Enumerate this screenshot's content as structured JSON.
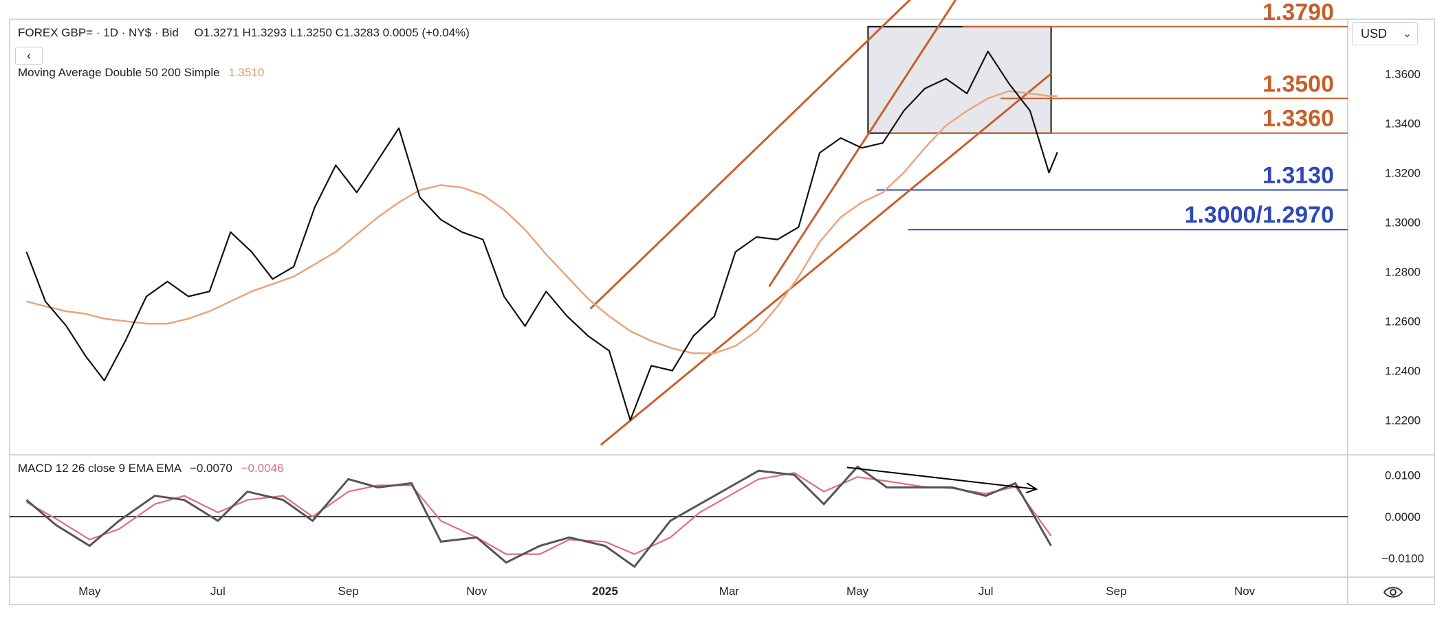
{
  "header": {
    "instrument": "FOREX GBP= · 1D · NY$ · Bid",
    "ohlc": "O1.3271  H1.3293  L1.3250  C1.3283  0.0005 (+0.04%)",
    "ma_label": "Moving Average Double 50 200 Simple",
    "ma_value": "1.3510",
    "collapse_icon": "chevron-left-icon"
  },
  "currency_select": {
    "value": "USD"
  },
  "settings_icon": "eye-settings-icon",
  "colors": {
    "price": "#111111",
    "ma": "#e8a57c",
    "resistance": "#c85f2a",
    "support": "#2e48b8",
    "macd": "#555555",
    "signal": "#e06f77",
    "grid_border": "#c8c8c8",
    "box_fill": "#e6e7ec"
  },
  "chart_data": [
    {
      "type": "line",
      "name": "price",
      "x": [
        "2024-04-01",
        "2024-04-10",
        "2024-04-20",
        "2024-04-29",
        "2024-05-08",
        "2024-05-18",
        "2024-05-28",
        "2024-06-07",
        "2024-06-17",
        "2024-06-27",
        "2024-07-07",
        "2024-07-17",
        "2024-07-27",
        "2024-08-06",
        "2024-08-16",
        "2024-08-26",
        "2024-09-05",
        "2024-09-15",
        "2024-09-25",
        "2024-10-05",
        "2024-10-15",
        "2024-10-25",
        "2024-11-04",
        "2024-11-14",
        "2024-11-24",
        "2024-12-04",
        "2024-12-14",
        "2024-12-24",
        "2025-01-03",
        "2025-01-13",
        "2025-01-23",
        "2025-02-02",
        "2025-02-12",
        "2025-02-22",
        "2025-03-04",
        "2025-03-14",
        "2025-03-24",
        "2025-04-03",
        "2025-04-13",
        "2025-04-23",
        "2025-05-03",
        "2025-05-13",
        "2025-05-23",
        "2025-06-02",
        "2025-06-12",
        "2025-06-22",
        "2025-07-02",
        "2025-07-12",
        "2025-07-22",
        "2025-07-31",
        "2025-08-04"
      ],
      "values": [
        1.288,
        1.268,
        1.258,
        1.246,
        1.236,
        1.252,
        1.27,
        1.276,
        1.27,
        1.272,
        1.296,
        1.288,
        1.277,
        1.282,
        1.306,
        1.323,
        1.312,
        1.325,
        1.338,
        1.31,
        1.301,
        1.296,
        1.293,
        1.27,
        1.258,
        1.272,
        1.262,
        1.254,
        1.248,
        1.22,
        1.242,
        1.24,
        1.254,
        1.262,
        1.288,
        1.294,
        1.293,
        1.298,
        1.328,
        1.334,
        1.33,
        1.332,
        1.345,
        1.354,
        1.358,
        1.352,
        1.369,
        1.356,
        1.345,
        1.32,
        1.3283
      ],
      "ma_50": [
        1.268,
        1.266,
        1.264,
        1.263,
        1.261,
        1.26,
        1.259,
        1.259,
        1.261,
        1.264,
        1.268,
        1.272,
        1.275,
        1.278,
        1.283,
        1.288,
        1.295,
        1.302,
        1.308,
        1.313,
        1.315,
        1.314,
        1.311,
        1.305,
        1.297,
        1.287,
        1.278,
        1.269,
        1.262,
        1.256,
        1.252,
        1.249,
        1.247,
        1.247,
        1.25,
        1.256,
        1.266,
        1.278,
        1.292,
        1.302,
        1.308,
        1.312,
        1.32,
        1.33,
        1.339,
        1.345,
        1.35,
        1.353,
        1.352,
        1.351,
        1.351
      ],
      "ylim": [
        1.206,
        1.382
      ],
      "y_ticks": [
        "1.2200",
        "1.2400",
        "1.2600",
        "1.2800",
        "1.3000",
        "1.3200",
        "1.3400",
        "1.3600"
      ],
      "x_ticks": [
        "May",
        "Jul",
        "Sep",
        "Nov",
        "2025",
        "Mar",
        "May",
        "Jul",
        "Sep",
        "Nov"
      ],
      "grid": false,
      "annotations": {
        "levels": [
          {
            "label": "1.3790",
            "value": 1.379,
            "color": "resistance",
            "start": "2025-06-20"
          },
          {
            "label": "1.3500",
            "value": 1.35,
            "color": "resistance",
            "start": "2025-07-08"
          },
          {
            "label": "1.3360",
            "value": 1.336,
            "color": "resistance",
            "start": "2025-05-15"
          },
          {
            "label": "1.3130",
            "value": 1.313,
            "color": "support",
            "start": "2025-05-10"
          },
          {
            "label": "1.3000/1.2970",
            "value": 1.297,
            "color": "support",
            "start": "2025-05-25"
          }
        ],
        "channel": {
          "lower": [
            [
              "2024-12-30",
              1.21
            ],
            [
              "2025-08-01",
              1.36
            ]
          ],
          "upper": [
            [
              "2024-12-25",
              1.265
            ],
            [
              "2025-08-01",
              1.445
            ]
          ]
        },
        "range_box": {
          "x0": "2025-05-06",
          "x1": "2025-08-01",
          "y0": 1.336,
          "y1": 1.379
        }
      }
    },
    {
      "type": "line",
      "name": "MACD",
      "label": "MACD 12 26 close 9 EMA EMA",
      "macd_value": "−0.0070",
      "signal_value": "−0.0046",
      "x": [
        "2024-04-01",
        "2024-04-15",
        "2024-05-01",
        "2024-05-15",
        "2024-06-01",
        "2024-06-15",
        "2024-07-01",
        "2024-07-15",
        "2024-08-01",
        "2024-08-15",
        "2024-09-01",
        "2024-09-15",
        "2024-10-01",
        "2024-10-15",
        "2024-11-01",
        "2024-11-15",
        "2024-12-01",
        "2024-12-15",
        "2025-01-01",
        "2025-01-15",
        "2025-02-01",
        "2025-02-15",
        "2025-03-01",
        "2025-03-15",
        "2025-04-01",
        "2025-04-15",
        "2025-05-01",
        "2025-05-15",
        "2025-06-01",
        "2025-06-15",
        "2025-07-01",
        "2025-07-15",
        "2025-08-01"
      ],
      "macd": [
        0.004,
        -0.002,
        -0.007,
        -0.001,
        0.005,
        0.004,
        -0.001,
        0.006,
        0.004,
        -0.001,
        0.009,
        0.007,
        0.008,
        -0.006,
        -0.005,
        -0.011,
        -0.007,
        -0.005,
        -0.007,
        -0.012,
        -0.001,
        0.003,
        0.007,
        0.011,
        0.01,
        0.003,
        0.012,
        0.007,
        0.007,
        0.007,
        0.005,
        0.008,
        -0.007
      ],
      "signal": [
        0.0035,
        -0.0005,
        -0.0055,
        -0.003,
        0.003,
        0.005,
        0.001,
        0.004,
        0.005,
        0.0,
        0.006,
        0.0075,
        0.0075,
        -0.001,
        -0.005,
        -0.009,
        -0.009,
        -0.0055,
        -0.006,
        -0.009,
        -0.005,
        0.001,
        0.005,
        0.009,
        0.0105,
        0.006,
        0.0095,
        0.0085,
        0.0072,
        0.0068,
        0.0055,
        0.0072,
        -0.0046
      ],
      "ylim": [
        -0.0145,
        0.0145
      ],
      "y_ticks": [
        "0.0100",
        "0.0000",
        "−0.0100"
      ],
      "annotations": {
        "divergence_arrow": {
          "start": [
            "2025-04-26",
            0.0118
          ],
          "end": [
            "2025-07-25",
            0.0066
          ]
        }
      }
    }
  ]
}
